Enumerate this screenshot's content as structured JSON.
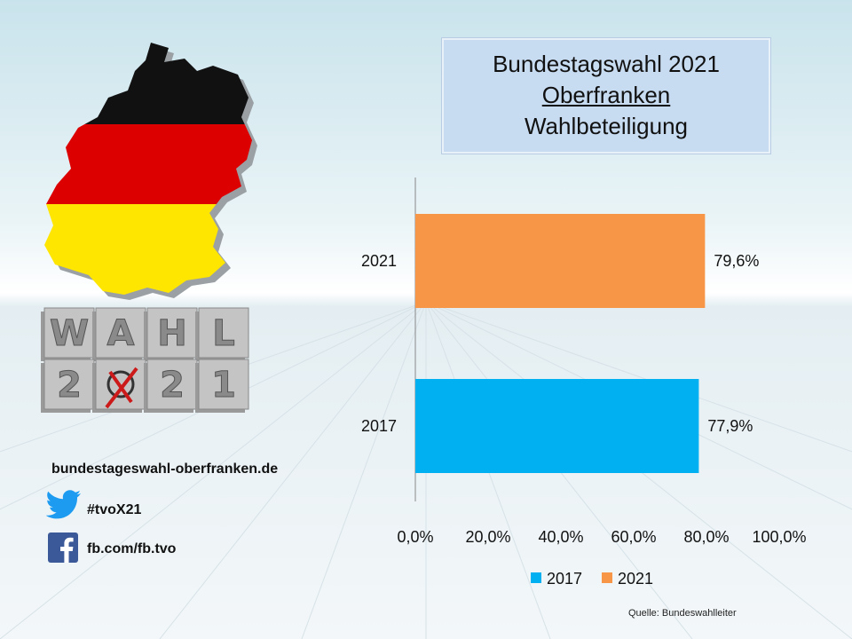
{
  "title": {
    "line1": "Bundestagswahl 2021",
    "line2": "Oberfranken",
    "line3": "Wahlbeteiligung"
  },
  "sidebar": {
    "website": "bundestageswahl-oberfranken.de",
    "hashtag": "#tvoX21",
    "facebook": "fb.com/fb.tvo"
  },
  "logo": {
    "top_letters": [
      "W",
      "A",
      "H",
      "L"
    ],
    "bottom_letters": [
      "2",
      "",
      "2",
      "1"
    ]
  },
  "source": "Quelle: Bundeswahlleiter",
  "colors": {
    "series_2017": "#00b0f0",
    "series_2021": "#f79646",
    "title_box": "#c7dbf1"
  },
  "chart_data": {
    "type": "bar",
    "orientation": "horizontal",
    "categories": [
      "2021",
      "2017"
    ],
    "values": [
      79.6,
      77.9
    ],
    "data_labels": [
      "79,6%",
      "77,9%"
    ],
    "bar_colors": [
      "#f79646",
      "#00b0f0"
    ],
    "xlim": [
      0,
      100
    ],
    "x_ticks": [
      "0,0%",
      "20,0%",
      "40,0%",
      "60,0%",
      "80,0%",
      "100,0%"
    ],
    "legend": [
      {
        "label": "2017",
        "color": "#00b0f0"
      },
      {
        "label": "2021",
        "color": "#f79646"
      }
    ],
    "legend_position": "bottom",
    "grid": false
  }
}
